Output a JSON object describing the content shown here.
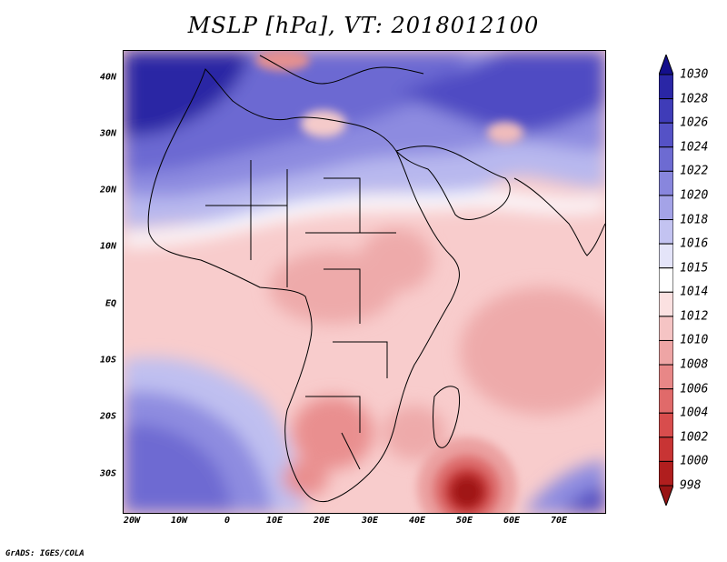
{
  "title": "MSLP [hPa], VT: 2018012100",
  "credit": "GrADS: IGES/COLA",
  "map": {
    "lat_labels": [
      "40N",
      "30N",
      "20N",
      "10N",
      "EQ",
      "10S",
      "20S",
      "30S"
    ],
    "lon_labels": [
      "20W",
      "10W",
      "0",
      "10E",
      "20E",
      "30E",
      "40E",
      "50E",
      "60E",
      "70E"
    ],
    "features": {
      "low_center": "low-pressure-center",
      "high_center": "high-pressure-center"
    }
  },
  "colorbar": {
    "levels": [
      "1030",
      "1028",
      "1026",
      "1024",
      "1022",
      "1020",
      "1018",
      "1016",
      "1015",
      "1014",
      "1012",
      "1010",
      "1008",
      "1006",
      "1004",
      "1002",
      "1000",
      "998"
    ],
    "colors": [
      "#140f8c",
      "#2a26a6",
      "#3f3cb8",
      "#5552c6",
      "#6d6bd2",
      "#8886dd",
      "#a4a3e7",
      "#c3c3f1",
      "#e4e4f9",
      "#ffffff",
      "#fbe1e1",
      "#f5c4c4",
      "#eea5a5",
      "#e88787",
      "#e06a6a",
      "#d84d4d",
      "#c83434",
      "#b01e1e",
      "#981414"
    ]
  }
}
